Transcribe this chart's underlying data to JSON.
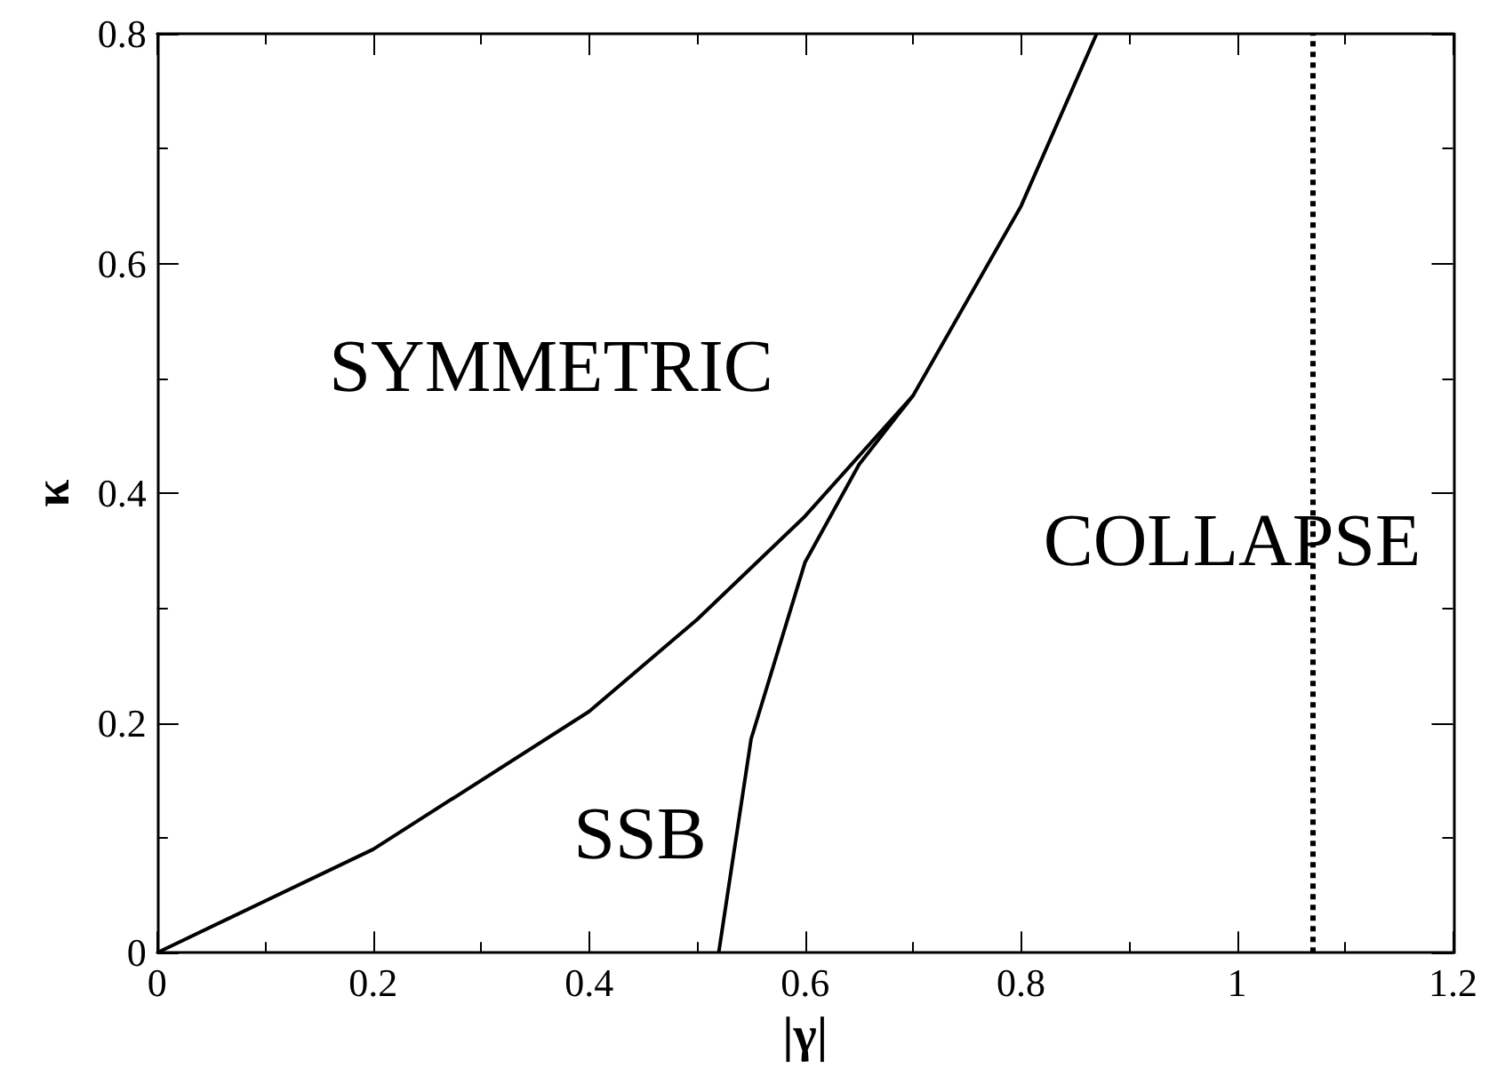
{
  "chart_data": {
    "type": "line",
    "xlabel": "|γ|",
    "ylabel": "κ",
    "series": [
      {
        "color": "#000000",
        "x": [
          0,
          0.2,
          0.4,
          0.5,
          0.6,
          0.7,
          0.8,
          0.87
        ],
        "values": [
          0,
          0.09,
          0.21,
          0.29,
          0.38,
          0.485,
          0.65,
          0.8
        ]
      },
      {
        "color": "#000000",
        "x": [
          0.52,
          0.55,
          0.6,
          0.65,
          0.7
        ],
        "values": [
          0,
          0.186,
          0.34,
          0.425,
          0.485
        ]
      }
    ],
    "xlim": [
      0,
      1.2
    ],
    "xticks": [
      0,
      0.2,
      0.4,
      0.6,
      0.8,
      1,
      1.2
    ],
    "ylim": [
      0,
      0.8
    ],
    "yticks": [
      0,
      0.2,
      0.4,
      0.6,
      0.8
    ],
    "ref_lines": [
      {
        "axis": "x",
        "value": 1.07,
        "color": "#000000",
        "line_style": "dotted"
      }
    ],
    "annotations": [
      "SYMMETRIC",
      "SSB",
      "COLLAPSE"
    ],
    "marker": "none",
    "line_style": "solid",
    "grid": false
  }
}
